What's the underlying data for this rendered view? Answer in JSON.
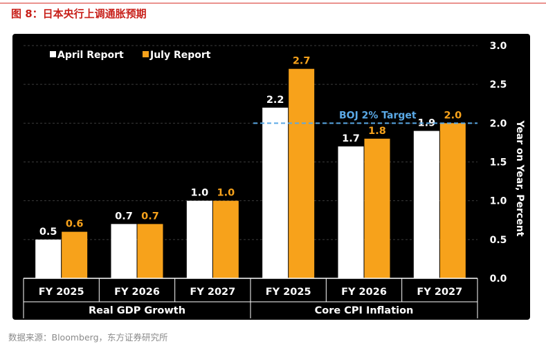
{
  "figure": {
    "title": "图 8：日本央行上调通胀预期",
    "source": "数据来源：Bloomberg，东方证券研究所"
  },
  "chart_data": {
    "type": "bar",
    "categories": [
      "FY 2025",
      "FY 2026",
      "FY 2027",
      "FY 2025",
      "FY 2026",
      "FY 2027"
    ],
    "groups": [
      {
        "name": "Real GDP Growth",
        "categories": [
          0,
          1,
          2
        ]
      },
      {
        "name": "Core CPI Inflation",
        "categories": [
          3,
          4,
          5
        ]
      }
    ],
    "series": [
      {
        "name": "April Report",
        "color": "#ffffff",
        "label_color": "#ffffff",
        "values": [
          0.5,
          0.7,
          1.0,
          2.2,
          1.7,
          1.9
        ],
        "value_labels": [
          "0.5",
          "0.7",
          "1.0",
          "2.2",
          "1.7",
          "1.9"
        ]
      },
      {
        "name": "July Report",
        "color": "#f7a21b",
        "label_color": "#f7a21b",
        "values": [
          0.6,
          0.7,
          1.0,
          2.7,
          1.8,
          2.0
        ],
        "value_labels": [
          "0.6",
          "0.7",
          "1.0",
          "2.7",
          "1.8",
          "2.0"
        ]
      }
    ],
    "ylim": [
      0,
      3.0
    ],
    "yticks": [
      0.0,
      0.5,
      1.0,
      1.5,
      2.0,
      2.5,
      3.0
    ],
    "ytick_labels": [
      "0.0",
      "0.5",
      "1.0",
      "1.5",
      "2.0",
      "2.5",
      "3.0"
    ],
    "ylabel": "Year on Year, Percent",
    "yaxis_side": "right",
    "legend_position": "top-left",
    "reference_line": {
      "value": 2.0,
      "label": "BOJ 2% Target",
      "color": "#5aa9e6",
      "style": "dashed",
      "applies_to_group": 1
    },
    "grid": true
  }
}
